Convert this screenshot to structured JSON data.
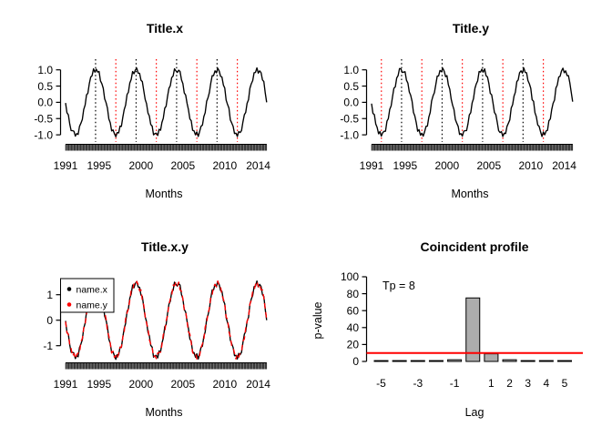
{
  "figure": {
    "background": "#ffffff"
  },
  "colors": {
    "line": "#000000",
    "red": "#FF0000",
    "bar_fill": "#ACACAC",
    "bar_edge": "#000000",
    "peak_line": "#000000",
    "trough_line": "#FF0000"
  },
  "series": {
    "t_start": 1991.0,
    "t_step_years": 0.1666667,
    "x": [
      -0.02,
      -0.32,
      -0.39,
      -0.67,
      -0.87,
      -0.87,
      -0.89,
      -1.04,
      -0.96,
      -0.99,
      -0.74,
      -0.64,
      -0.53,
      -0.22,
      -0.08,
      0.23,
      0.28,
      0.58,
      0.78,
      0.82,
      1.03,
      0.93,
      1.02,
      0.93,
      0.95,
      0.66,
      0.57,
      0.43,
      0.11,
      -0.01,
      -0.18,
      -0.51,
      -0.63,
      -0.88,
      -0.85,
      -0.97,
      -1.06,
      -0.93,
      -0.94,
      -0.73,
      -0.74,
      -0.45,
      -0.22,
      -0.09,
      0.24,
      0.31,
      0.59,
      0.71,
      0.95,
      0.88,
      1.0,
      1.05,
      0.9,
      0.89,
      0.68,
      0.64,
      0.35,
      0.09,
      -0.04,
      -0.33,
      -0.42,
      -0.68,
      -0.73,
      -1.0,
      -0.96,
      -0.95,
      -1.02,
      -0.83,
      -0.86,
      -0.62,
      -0.49,
      -0.18,
      -0.12,
      0.17,
      0.43,
      0.51,
      0.76,
      0.81,
      1.03,
      0.97,
      0.92,
      0.99,
      0.95,
      0.69,
      0.58,
      0.29,
      0.22,
      -0.03,
      -0.22,
      -0.51,
      -0.57,
      -0.86,
      -0.88,
      -1.0,
      -0.91,
      -1.05,
      -0.9,
      -0.74,
      -0.7,
      -0.44,
      -0.32,
      0.03,
      0.14,
      0.3,
      0.6,
      0.82,
      0.82,
      0.97,
      0.91,
      1.05,
      0.96,
      0.8,
      0.78,
      0.53,
      0.44,
      0.07,
      -0.07,
      -0.18,
      -0.54,
      -0.64,
      -0.74,
      -0.96,
      -0.95,
      -1.05,
      -0.9,
      -0.93,
      -0.87,
      -0.61,
      -0.38,
      -0.31,
      -0.03,
      0.08,
      0.43,
      0.57,
      0.67,
      0.91,
      0.92,
      1.06,
      0.9,
      0.97,
      0.91,
      0.69,
      0.64,
      0.28,
      0.0
    ],
    "y": [
      -0.04,
      -0.34,
      -0.38,
      -0.67,
      -0.77,
      -0.97,
      -0.9,
      -1.04,
      -0.93,
      -0.89,
      -0.89,
      -0.58,
      -0.5,
      -0.22,
      -0.11,
      0.17,
      0.43,
      0.48,
      0.75,
      0.82,
      1.04,
      1.03,
      0.92,
      0.93,
      0.94,
      0.68,
      0.59,
      0.32,
      0.22,
      0.03,
      -0.31,
      -0.42,
      -0.63,
      -0.89,
      -0.84,
      -1.01,
      -0.95,
      -1.04,
      -0.9,
      -0.74,
      -0.73,
      -0.45,
      -0.31,
      0.04,
      0.2,
      0.3,
      0.54,
      0.81,
      0.81,
      0.98,
      0.94,
      1.05,
      0.96,
      0.79,
      0.82,
      0.54,
      0.4,
      0.1,
      -0.08,
      -0.22,
      -0.53,
      -0.64,
      -0.74,
      -0.99,
      -0.96,
      -1.04,
      -0.89,
      -0.87,
      -0.87,
      -0.67,
      -0.39,
      -0.32,
      -0.02,
      0.11,
      0.43,
      0.57,
      0.66,
      0.95,
      0.93,
      1.02,
      0.93,
      1.03,
      0.82,
      0.78,
      0.58,
      0.28,
      0.23,
      -0.03,
      -0.31,
      -0.38,
      -0.61,
      -0.87,
      -0.93,
      -0.9,
      -1.05,
      -0.95,
      -0.96,
      -0.74,
      -0.64,
      -0.54,
      -0.18,
      -0.07,
      0.19,
      0.31,
      0.64,
      0.69,
      0.91,
      0.97,
      0.9,
      1.06,
      0.92,
      0.91,
      0.67,
      0.57,
      0.43,
      0.08,
      0.03,
      -0.32,
      -0.44,
      -0.7,
      -0.74,
      -0.9,
      -1.05,
      -0.91,
      -1.0,
      -0.88,
      -0.86,
      -0.57,
      -0.51,
      -0.22,
      -0.03,
      0.07,
      0.44,
      0.53,
      0.78,
      0.8,
      0.96,
      1.05,
      0.91,
      0.97,
      0.82,
      0.82,
      0.6,
      0.3,
      0.02
    ]
  },
  "chart_data": [
    {
      "id": "title-x",
      "type": "line",
      "title": "Title.x",
      "xlabel": "Months",
      "series": "x",
      "x_range": [
        1991,
        2015
      ],
      "xtick_labels": [
        "1991",
        "1995",
        "2000",
        "2005",
        "2010",
        "2014"
      ],
      "ytick_labels": [
        "1.0",
        "0.5",
        "0.0",
        "-0.5",
        "-1.0"
      ],
      "ylim": [
        -1.2,
        1.25
      ],
      "peak_lines": [
        1994.58,
        1999.42,
        2004.25,
        2009.08
      ],
      "trough_lines": [
        1997.0,
        2001.83,
        2006.67,
        2011.5
      ],
      "rug": "monthly",
      "grid": false
    },
    {
      "id": "title-y",
      "type": "line",
      "title": "Title.y",
      "xlabel": "Months",
      "series": "y",
      "x_range": [
        1991,
        2015
      ],
      "xtick_labels": [
        "1991",
        "1995",
        "2000",
        "2005",
        "2010",
        "2014"
      ],
      "ytick_labels": [
        "1.0",
        "0.5",
        "0.0",
        "-0.5",
        "-1.0"
      ],
      "ylim": [
        -1.2,
        1.25
      ],
      "peak_lines": [
        1994.58,
        1999.42,
        2004.25,
        2009.08
      ],
      "trough_lines": [
        1992.17,
        1997.0,
        2001.83,
        2006.67,
        2011.5
      ],
      "rug": "monthly",
      "grid": false
    },
    {
      "id": "title-x-y",
      "type": "line",
      "title": "Title.x.y",
      "xlabel": "Months",
      "x_range": [
        1991,
        2015
      ],
      "xtick_labels": [
        "1991",
        "1995",
        "2000",
        "2005",
        "2010",
        "2014"
      ],
      "ytick_labels": [
        "1",
        "0",
        "-1"
      ],
      "ylim": [
        -1.75,
        1.75
      ],
      "amplitude_scale": 1.45,
      "multi_series": [
        {
          "series": "x",
          "label": "name.x",
          "color": "#000000",
          "dash": ""
        },
        {
          "series": "y",
          "label": "name.y",
          "color": "#FF0000",
          "dash": "6,4"
        }
      ],
      "legend_position": "topleft",
      "rug": "monthly",
      "grid": false
    },
    {
      "id": "coincident-profile",
      "type": "bar",
      "title": "Coincident profile",
      "xlabel": "Lag",
      "ylabel": "p-value",
      "annotation": "Tp = 8",
      "categories": [
        -5,
        -4,
        -3,
        -2,
        -1,
        0,
        1,
        2,
        3,
        4,
        5
      ],
      "values": [
        1,
        1,
        1,
        1,
        2,
        75,
        9,
        2,
        1,
        1,
        1
      ],
      "xtick_labels": [
        "-5",
        "-3",
        "-1",
        "1",
        "2",
        "3",
        "4",
        "5"
      ],
      "xtick_lags": [
        -5,
        -3,
        -1,
        1,
        2,
        3,
        4,
        5
      ],
      "ytick_labels": [
        "0",
        "20",
        "40",
        "60",
        "80",
        "100"
      ],
      "ylim": [
        0,
        100
      ],
      "hline": {
        "value": 10,
        "color": "#FF0000"
      },
      "grid": false
    }
  ]
}
